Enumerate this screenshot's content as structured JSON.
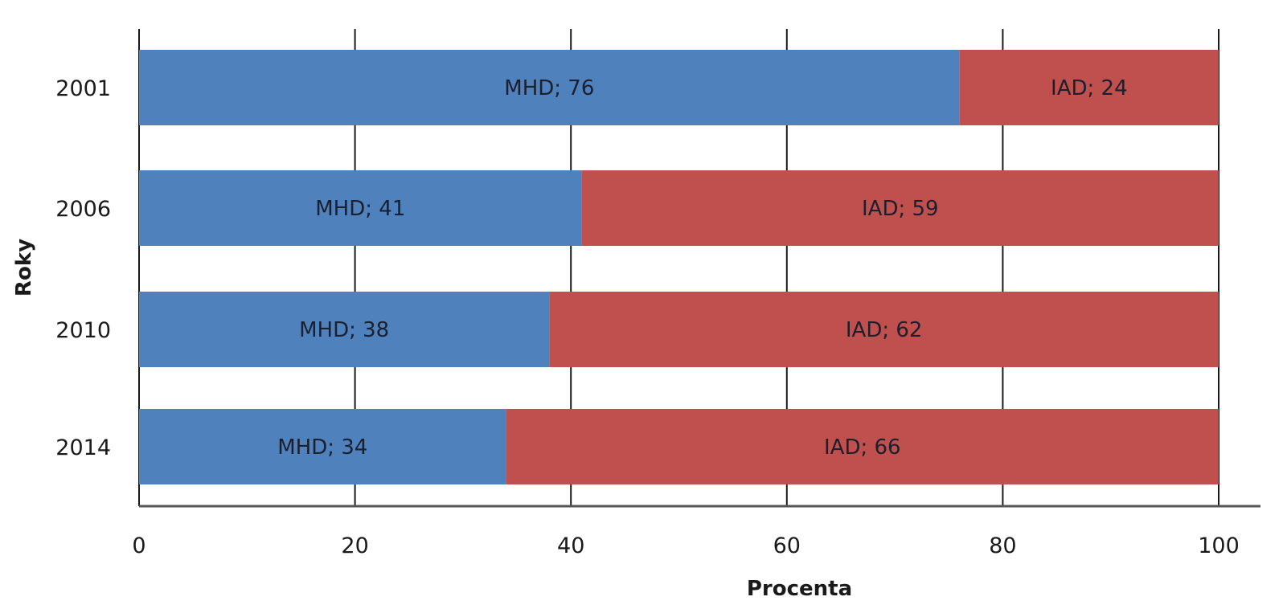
{
  "chart_data": {
    "type": "bar",
    "orientation": "horizontal",
    "stacked": true,
    "categories": [
      "2001",
      "2006",
      "2010",
      "2014"
    ],
    "series": [
      {
        "name": "MHD",
        "values": [
          76,
          41,
          38,
          34
        ],
        "color": "#4f81bd"
      },
      {
        "name": "IAD",
        "values": [
          24,
          59,
          62,
          66
        ],
        "color": "#c0504d"
      }
    ],
    "data_labels": [
      [
        "MHD; 76",
        "MHD; 41",
        "MHD; 38",
        "MHD; 34"
      ],
      [
        "IAD; 24",
        "IAD; 59",
        "IAD; 62",
        "IAD; 66"
      ]
    ],
    "xlabel": "Procenta",
    "ylabel": "Roky",
    "xlim": [
      0,
      100
    ],
    "xticks": [
      "0",
      "20",
      "40",
      "60",
      "80",
      "100"
    ],
    "grid": true,
    "legend": "none"
  }
}
